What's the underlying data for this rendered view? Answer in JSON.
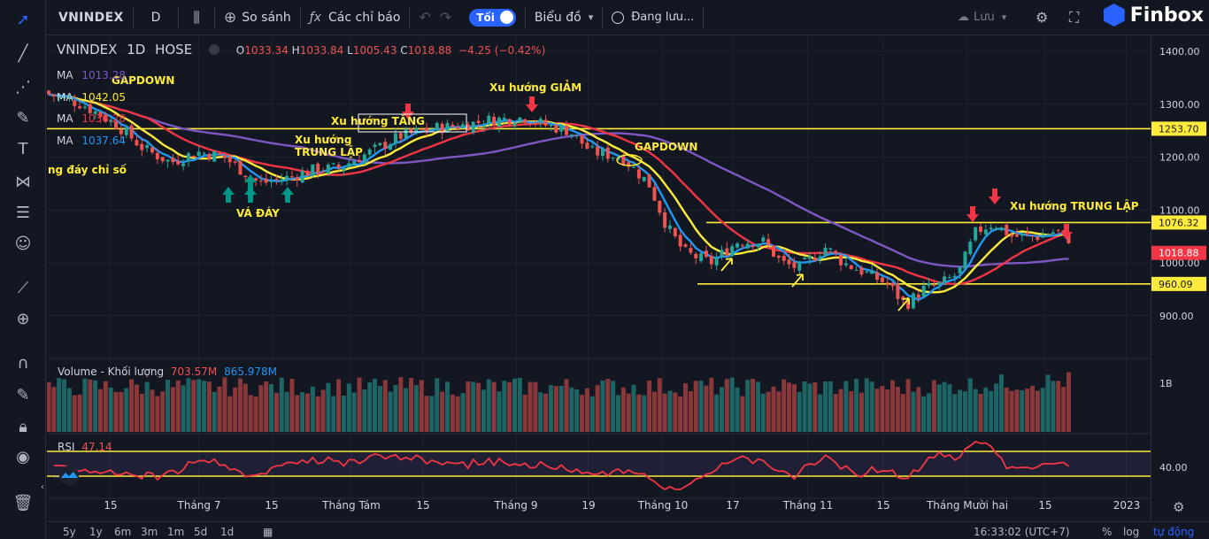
{
  "toolbar": {
    "symbol": "VNINDEX",
    "interval": "D",
    "compare": "So sánh",
    "indicators": "Các chỉ báo",
    "toggle_label": "Tối",
    "chart_type": "Biểu đồ",
    "saving": "Đang lưu...",
    "cloud_save": "Lưu",
    "brand": "Finbox"
  },
  "header": {
    "symbol": "VNINDEX",
    "interval": "1D",
    "exchange": "HOSE",
    "o_label": "O",
    "o": "1033.34",
    "h_label": "H",
    "h": "1033.84",
    "l_label": "L",
    "l": "1005.43",
    "c_label": "C",
    "c": "1018.88",
    "change": "−4.25 (−0.42%)"
  },
  "ma_legend": [
    {
      "label": "MA",
      "value": "1013.28",
      "color": "#7e57c2"
    },
    {
      "label": "MA",
      "value": "1042.05",
      "color": "#ffeb3b"
    },
    {
      "label": "MA",
      "value": "1036.28",
      "color": "#f23645"
    },
    {
      "label": "MA",
      "value": "1037.64",
      "color": "#2196f3"
    }
  ],
  "volume": {
    "label": "Volume - Khối lượng",
    "v1": "703.57M",
    "v2": "865.978M",
    "axis_label": "1B"
  },
  "rsi": {
    "label": "RSI",
    "value": "47.14",
    "axis_label": "40.00"
  },
  "price_axis": [
    "1400.00",
    "1300.00",
    "1200.00",
    "1100.00",
    "1000.00",
    "900.00"
  ],
  "price_tags": [
    {
      "value": "1253.70",
      "type": "line"
    },
    {
      "value": "1076.32",
      "type": "line"
    },
    {
      "value": "1018.88",
      "type": "last"
    },
    {
      "value": "960.09",
      "type": "line"
    }
  ],
  "time_axis": [
    "15",
    "Tháng 7",
    "15",
    "Tháng Tám",
    "15",
    "Tháng 9",
    "19",
    "Tháng 10",
    "17",
    "Tháng 11",
    "15",
    "Tháng Mười hai",
    "15",
    "2023"
  ],
  "annotations": [
    "GAPDOWN",
    "ng đáy chỉ số",
    "VÁ ĐÁY",
    "Xu hướng",
    "TRUNG LẬP",
    "Xu hướng TĂNG",
    "Xu hướng GIẢM",
    "GAPDOWN",
    "Xu hướng TRUNG LẬP"
  ],
  "bottom": {
    "ranges": [
      "5y",
      "1y",
      "6m",
      "3m",
      "1m",
      "5d",
      "1d"
    ],
    "clock": "16:33:02 (UTC+7)",
    "percent": "%",
    "log": "log",
    "auto": "tự động"
  },
  "colors": {
    "up": "#26a69a",
    "down": "#ef5350",
    "level": "#ffeb3b",
    "arrow_up": "#009688",
    "arrow_down": "#f23645"
  }
}
